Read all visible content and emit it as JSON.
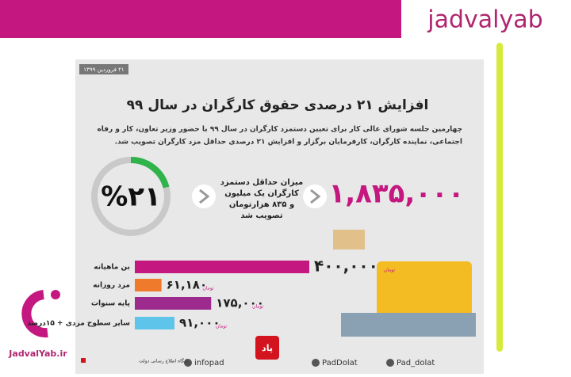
{
  "brand": {
    "name": "jadvalyab",
    "site": "JadvalYab.ir"
  },
  "infographic": {
    "date": "۲۱ فروردین ۱۳۹۹",
    "title": "افزایش ۲۱ درصدی حقوق کارگران در سال ۹۹",
    "paragraph": [
      "چهارمین جلسه شورای عالی کار برای تعیین دستمزد کارگران در سال ۹۹ با حضور وزیر تعاون، کار و رفاه",
      "اجتماعی، نماینده کارگران، کارفرمایان برگزار و افزایش ۲۱ درصدی حداقل مزد کارگران تصویب شد."
    ],
    "gauge": {
      "value": 21,
      "label": "%۲۱"
    },
    "middle_text": [
      "میزان حداقل دستمزد",
      "کارگران یک میلیون",
      "و ۸۳۵ هزارتومان",
      "تصویب شد"
    ],
    "big_number": "۱,۸۳۵,۰۰۰",
    "footer": {
      "logo": "پاد",
      "links": [
        "infopad",
        "PadDolat",
        "Pad_dolat"
      ],
      "source": "پایگاه اطلاع رسانی دولت"
    }
  },
  "chart_data": {
    "type": "bar",
    "categories": [
      "بن ماهیانه",
      "مزد روزانه",
      "پایه سنوات",
      "سایر سطوح مزدی + ۱۵درصد"
    ],
    "values": [
      400000,
      61180,
      175000,
      91000
    ],
    "value_labels": [
      "۴۰۰,۰۰۰",
      "۶۱,۱۸۰",
      "۱۷۵,۰۰۰",
      "۹۱,۰۰۰"
    ],
    "unit": "تومان",
    "colors": [
      "#c4177f",
      "#f07a2b",
      "#9c2b8d",
      "#5fc4ea"
    ],
    "xlim": [
      0,
      400000
    ]
  }
}
